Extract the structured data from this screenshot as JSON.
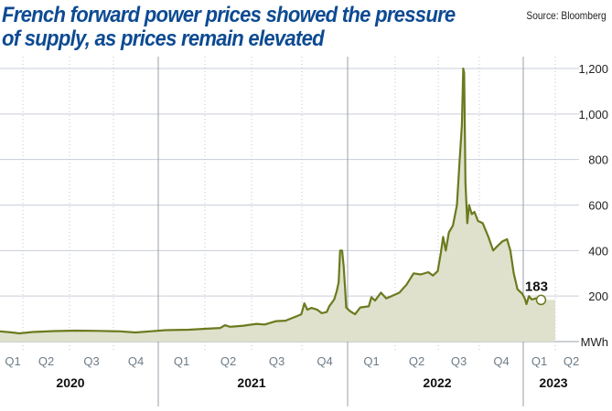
{
  "title": "French forward power prices showed the pressure of supply, as prices remain elevated",
  "source": "Source: Bloomberg",
  "chart_data": {
    "type": "area",
    "title": "French forward power prices showed the pressure of supply, as prices remain elevated",
    "ylabel": "MWh",
    "ylim": [
      0,
      1200
    ],
    "yticks": [
      200,
      400,
      600,
      800,
      1000,
      1200
    ],
    "ytick_labels": [
      "200",
      "400",
      "600",
      "800",
      "1,000",
      "1,200"
    ],
    "grid": true,
    "quarter_labels": [
      {
        "label": "Q1",
        "year": 2020
      },
      {
        "label": "Q2",
        "year": 2020
      },
      {
        "label": "Q3",
        "year": 2020
      },
      {
        "label": "Q4",
        "year": 2020
      },
      {
        "label": "Q1",
        "year": 2021
      },
      {
        "label": "Q2",
        "year": 2021
      },
      {
        "label": "Q3",
        "year": 2021
      },
      {
        "label": "Q4",
        "year": 2021
      },
      {
        "label": "Q1",
        "year": 2022
      },
      {
        "label": "Q2",
        "year": 2022
      },
      {
        "label": "Q3",
        "year": 2022
      },
      {
        "label": "Q4",
        "year": 2022
      },
      {
        "label": "Q1",
        "year": 2023
      },
      {
        "label": "Q2",
        "year": 2023
      }
    ],
    "years": [
      "2020",
      "2021",
      "2022",
      "2023"
    ],
    "last_value_label": "183",
    "colors": {
      "line": "#6b7a1e",
      "fill": "#dfe1cc",
      "title": "#0d4a92"
    },
    "series": [
      [
        "2020-02-15",
        45
      ],
      [
        "2020-03-10",
        40
      ],
      [
        "2020-03-25",
        36
      ],
      [
        "2020-04-20",
        42
      ],
      [
        "2020-06-01",
        46
      ],
      [
        "2020-07-15",
        48
      ],
      [
        "2020-09-01",
        47
      ],
      [
        "2020-10-15",
        45
      ],
      [
        "2020-11-15",
        40
      ],
      [
        "2020-12-15",
        45
      ],
      [
        "2021-01-15",
        50
      ],
      [
        "2021-03-01",
        52
      ],
      [
        "2021-04-01",
        56
      ],
      [
        "2021-05-01",
        60
      ],
      [
        "2021-05-10",
        72
      ],
      [
        "2021-05-20",
        65
      ],
      [
        "2021-06-15",
        70
      ],
      [
        "2021-07-10",
        78
      ],
      [
        "2021-07-25",
        75
      ],
      [
        "2021-08-15",
        90
      ],
      [
        "2021-09-01",
        92
      ],
      [
        "2021-09-20",
        110
      ],
      [
        "2021-09-30",
        120
      ],
      [
        "2021-10-06",
        168
      ],
      [
        "2021-10-12",
        140
      ],
      [
        "2021-10-20",
        148
      ],
      [
        "2021-11-01",
        140
      ],
      [
        "2021-11-10",
        125
      ],
      [
        "2021-11-20",
        130
      ],
      [
        "2021-11-25",
        155
      ],
      [
        "2021-12-05",
        185
      ],
      [
        "2021-12-10",
        220
      ],
      [
        "2021-12-14",
        260
      ],
      [
        "2021-12-17",
        400
      ],
      [
        "2021-12-21",
        400
      ],
      [
        "2021-12-24",
        330
      ],
      [
        "2021-12-27",
        230
      ],
      [
        "2021-12-29",
        150
      ],
      [
        "2022-01-05",
        135
      ],
      [
        "2022-01-15",
        120
      ],
      [
        "2022-01-25",
        150
      ],
      [
        "2022-02-10",
        155
      ],
      [
        "2022-02-15",
        195
      ],
      [
        "2022-02-22",
        180
      ],
      [
        "2022-03-05",
        215
      ],
      [
        "2022-03-15",
        190
      ],
      [
        "2022-03-25",
        200
      ],
      [
        "2022-04-10",
        215
      ],
      [
        "2022-04-25",
        250
      ],
      [
        "2022-05-10",
        300
      ],
      [
        "2022-05-25",
        295
      ],
      [
        "2022-06-10",
        305
      ],
      [
        "2022-06-20",
        290
      ],
      [
        "2022-06-30",
        310
      ],
      [
        "2022-07-07",
        390
      ],
      [
        "2022-07-12",
        460
      ],
      [
        "2022-07-18",
        400
      ],
      [
        "2022-07-25",
        480
      ],
      [
        "2022-08-03",
        510
      ],
      [
        "2022-08-12",
        600
      ],
      [
        "2022-08-18",
        800
      ],
      [
        "2022-08-23",
        950
      ],
      [
        "2022-08-26",
        1200
      ],
      [
        "2022-08-28",
        1180
      ],
      [
        "2022-08-31",
        700
      ],
      [
        "2022-09-04",
        520
      ],
      [
        "2022-09-08",
        600
      ],
      [
        "2022-09-14",
        560
      ],
      [
        "2022-09-20",
        570
      ],
      [
        "2022-09-28",
        530
      ],
      [
        "2022-10-08",
        520
      ],
      [
        "2022-10-20",
        460
      ],
      [
        "2022-10-30",
        400
      ],
      [
        "2022-11-08",
        420
      ],
      [
        "2022-11-18",
        440
      ],
      [
        "2022-11-28",
        450
      ],
      [
        "2022-12-05",
        400
      ],
      [
        "2022-12-12",
        300
      ],
      [
        "2022-12-20",
        230
      ],
      [
        "2022-12-30",
        210
      ],
      [
        "2023-01-05",
        190
      ],
      [
        "2023-01-10",
        165
      ],
      [
        "2023-01-17",
        200
      ],
      [
        "2023-01-25",
        185
      ],
      [
        "2023-02-05",
        190
      ],
      [
        "2023-02-20",
        183
      ]
    ]
  }
}
